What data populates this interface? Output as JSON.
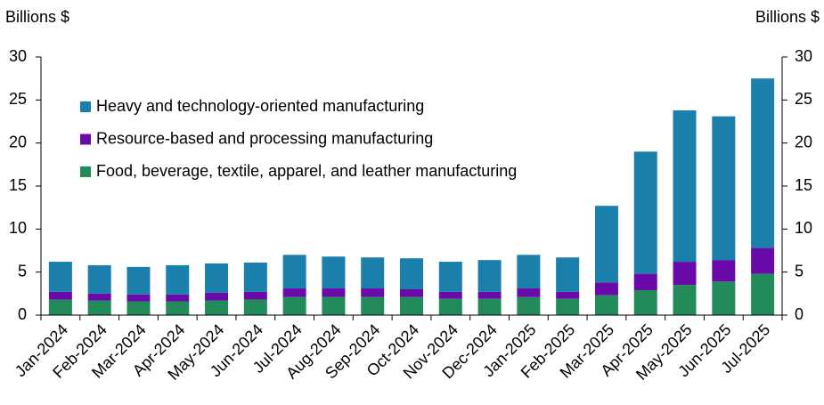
{
  "chart_data": {
    "type": "stacked_bar",
    "y_label": "Billions $",
    "y2_label": "Billions $",
    "categories": [
      "Jan-2024",
      "Feb-2024",
      "Mar-2024",
      "Apr-2024",
      "May-2024",
      "Jun-2024",
      "Jul-2024",
      "Aug-2024",
      "Sep-2024",
      "Oct-2024",
      "Nov-2024",
      "Dec-2024",
      "Jan-2025",
      "Feb-2025",
      "Mar-2025",
      "Apr-2025",
      "May-2025",
      "Jun-2025",
      "Jul-2025"
    ],
    "series": [
      {
        "name": "Food, beverage, textile, apparel, and leather manufacturing",
        "color": "#238a5a",
        "values": [
          1.8,
          1.7,
          1.6,
          1.6,
          1.7,
          1.8,
          2.1,
          2.1,
          2.1,
          2.1,
          1.9,
          1.9,
          2.1,
          1.9,
          2.3,
          2.9,
          3.5,
          3.9,
          4.8
        ]
      },
      {
        "name": "Resource-based and processing manufacturing",
        "color": "#6a0aaa",
        "values": [
          0.9,
          0.8,
          0.8,
          0.8,
          0.9,
          0.9,
          1.0,
          1.0,
          1.0,
          0.9,
          0.8,
          0.8,
          1.0,
          0.8,
          1.5,
          1.9,
          2.7,
          2.5,
          3.0
        ]
      },
      {
        "name": "Heavy and technology-oriented manufacturing",
        "color": "#1a7faa",
        "values": [
          3.5,
          3.3,
          3.2,
          3.4,
          3.4,
          3.4,
          3.9,
          3.7,
          3.6,
          3.6,
          3.5,
          3.7,
          3.9,
          4.0,
          8.9,
          14.2,
          17.6,
          16.7,
          19.7
        ]
      }
    ],
    "ylim": [
      0,
      30
    ],
    "yticks": [
      0,
      5,
      10,
      15,
      20,
      25,
      30
    ],
    "y2lim": [
      0,
      30
    ],
    "y2ticks": [
      0,
      5,
      10,
      15,
      20,
      25,
      30
    ],
    "grid": false
  }
}
